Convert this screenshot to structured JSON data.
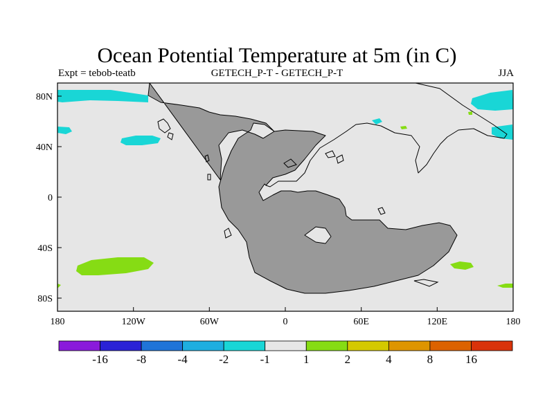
{
  "title": "Ocean Potential Temperature at 5m (in C)",
  "subtitle_left": "Expt = tebob-teatb",
  "subtitle_center": "GETECH_P-T - GETECH_P-T",
  "subtitle_right": "JJA",
  "axes": {
    "x_ticks": [
      "180",
      "120W",
      "60W",
      "0",
      "60E",
      "120E",
      "180"
    ],
    "y_ticks": [
      "80N",
      "40N",
      "0",
      "40S",
      "80S"
    ],
    "lon_range": [
      -180,
      180
    ],
    "lat_range": [
      -90,
      90
    ]
  },
  "colorbar": {
    "colors": [
      "#8a1adb",
      "#2a22d6",
      "#1f74d8",
      "#1eaee0",
      "#19d6d6",
      "#e6e6e6",
      "#86dc14",
      "#d4c900",
      "#de9500",
      "#dc6200",
      "#d9330a"
    ],
    "labels": [
      "-16",
      "-8",
      "-4",
      "-2",
      "-1",
      "1",
      "2",
      "4",
      "8",
      "16"
    ]
  },
  "colors": {
    "ocean_neutral": "#e6e6e6",
    "land": "#999999",
    "cyan_anomaly": "#19d6d6",
    "green_anomaly": "#86dc14"
  }
}
